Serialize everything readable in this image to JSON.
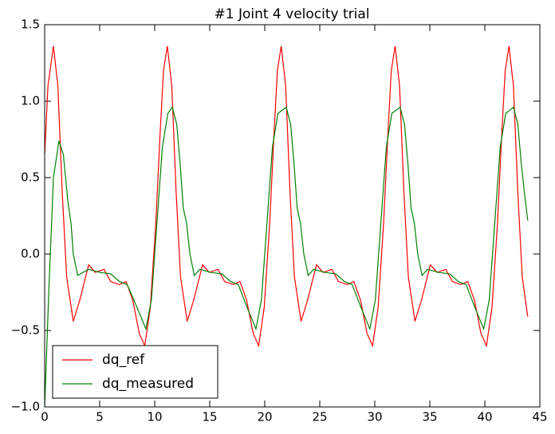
{
  "chart_data": {
    "type": "line",
    "title": "#1 Joint 4 velocity trial",
    "xlim": [
      0,
      45
    ],
    "xticks": [
      0,
      5,
      10,
      15,
      20,
      25,
      30,
      35,
      40,
      45
    ],
    "ylim": [
      -1.0,
      1.5
    ],
    "yticks": [
      {
        "value": -1.0,
        "label": "−1.0"
      },
      {
        "value": -0.5,
        "label": "−0.5"
      },
      {
        "value": 0.0,
        "label": "0.0"
      },
      0.5,
      {
        "value": 1.0,
        "label": "1.0"
      },
      1.5
    ],
    "grid": false,
    "legend": "lower left",
    "series": [
      {
        "name": "dq_ref",
        "color": "#ff0000",
        "x": [
          0,
          0.3,
          0.8,
          1.2,
          1.6,
          2.0,
          2.6,
          3.2,
          4.0,
          4.6,
          5.4,
          6.0,
          6.8,
          7.4,
          8.0,
          8.6,
          9.1,
          9.6,
          10.1,
          10.5,
          10.8,
          11.15,
          11.55,
          11.95,
          12.35,
          12.95,
          13.55,
          14.35,
          14.95,
          15.75,
          16.35,
          17.15,
          17.75,
          18.35,
          18.95,
          19.45,
          19.95,
          20.45,
          20.85,
          21.15,
          21.5,
          21.9,
          22.3,
          22.7,
          23.3,
          23.9,
          24.7,
          25.3,
          26.1,
          26.7,
          27.5,
          28.1,
          28.7,
          29.3,
          29.8,
          30.3,
          30.8,
          31.2,
          31.5,
          31.85,
          32.25,
          32.65,
          33.05,
          33.65,
          34.25,
          35.05,
          35.65,
          36.45,
          37.05,
          37.85,
          38.45,
          39.05,
          39.65,
          40.15,
          40.65,
          41.15,
          41.55,
          41.85,
          42.2,
          42.6,
          43.0,
          43.4,
          43.9
        ],
        "values": [
          0.65,
          1.1,
          1.36,
          1.1,
          0.4,
          -0.15,
          -0.44,
          -0.3,
          -0.07,
          -0.12,
          -0.1,
          -0.18,
          -0.2,
          -0.18,
          -0.3,
          -0.52,
          -0.6,
          -0.35,
          0.2,
          0.8,
          1.2,
          1.36,
          1.1,
          0.4,
          -0.15,
          -0.44,
          -0.3,
          -0.07,
          -0.12,
          -0.1,
          -0.18,
          -0.2,
          -0.18,
          -0.3,
          -0.52,
          -0.6,
          -0.35,
          0.2,
          0.8,
          1.2,
          1.36,
          1.1,
          0.4,
          -0.15,
          -0.44,
          -0.3,
          -0.07,
          -0.12,
          -0.1,
          -0.18,
          -0.2,
          -0.18,
          -0.3,
          -0.52,
          -0.6,
          -0.35,
          0.2,
          0.8,
          1.2,
          1.36,
          1.1,
          0.4,
          -0.15,
          -0.44,
          -0.3,
          -0.07,
          -0.12,
          -0.1,
          -0.18,
          -0.2,
          -0.18,
          -0.3,
          -0.52,
          -0.6,
          -0.35,
          0.2,
          0.8,
          1.2,
          1.36,
          1.1,
          0.4,
          -0.15,
          -0.41
        ]
      },
      {
        "name": "dq_measured",
        "color": "#008000",
        "x": [
          0,
          0.4,
          0.8,
          1.3,
          1.7,
          2.1,
          2.4,
          2.6,
          3.0,
          4.0,
          5.0,
          6.0,
          6.8,
          7.5,
          8.4,
          9.2,
          9.7,
          10.2,
          10.7,
          11.2,
          11.6,
          12.0,
          12.3,
          12.6,
          12.9,
          13.2,
          13.6,
          14.1,
          15.1,
          16.1,
          16.9,
          17.6,
          18.4,
          19.2,
          19.7,
          20.2,
          20.7,
          21.2,
          21.95,
          22.35,
          22.65,
          22.95,
          23.25,
          23.55,
          23.95,
          24.45,
          25.45,
          26.45,
          27.25,
          27.95,
          28.75,
          29.55,
          30.05,
          30.55,
          31.05,
          31.55,
          32.3,
          32.7,
          33.0,
          33.3,
          33.6,
          33.9,
          34.3,
          34.8,
          35.8,
          36.8,
          37.6,
          38.3,
          39.1,
          39.9,
          40.4,
          40.9,
          41.4,
          41.9,
          42.6,
          43.0,
          43.3,
          43.6,
          43.9
        ],
        "values": [
          -1.0,
          -0.2,
          0.5,
          0.74,
          0.65,
          0.35,
          0.2,
          0.0,
          -0.14,
          -0.1,
          -0.12,
          -0.13,
          -0.18,
          -0.2,
          -0.35,
          -0.49,
          -0.3,
          0.2,
          0.7,
          0.92,
          0.96,
          0.85,
          0.6,
          0.3,
          0.2,
          0.0,
          -0.14,
          -0.1,
          -0.12,
          -0.13,
          -0.18,
          -0.2,
          -0.35,
          -0.49,
          -0.3,
          0.2,
          0.7,
          0.92,
          0.96,
          0.85,
          0.6,
          0.3,
          0.2,
          0.0,
          -0.14,
          -0.1,
          -0.12,
          -0.13,
          -0.18,
          -0.2,
          -0.35,
          -0.49,
          -0.3,
          0.2,
          0.7,
          0.92,
          0.96,
          0.85,
          0.6,
          0.3,
          0.2,
          0.0,
          -0.14,
          -0.1,
          -0.12,
          -0.13,
          -0.18,
          -0.2,
          -0.35,
          -0.49,
          -0.3,
          0.2,
          0.7,
          0.92,
          0.96,
          0.85,
          0.6,
          0.4,
          0.22
        ]
      }
    ]
  }
}
